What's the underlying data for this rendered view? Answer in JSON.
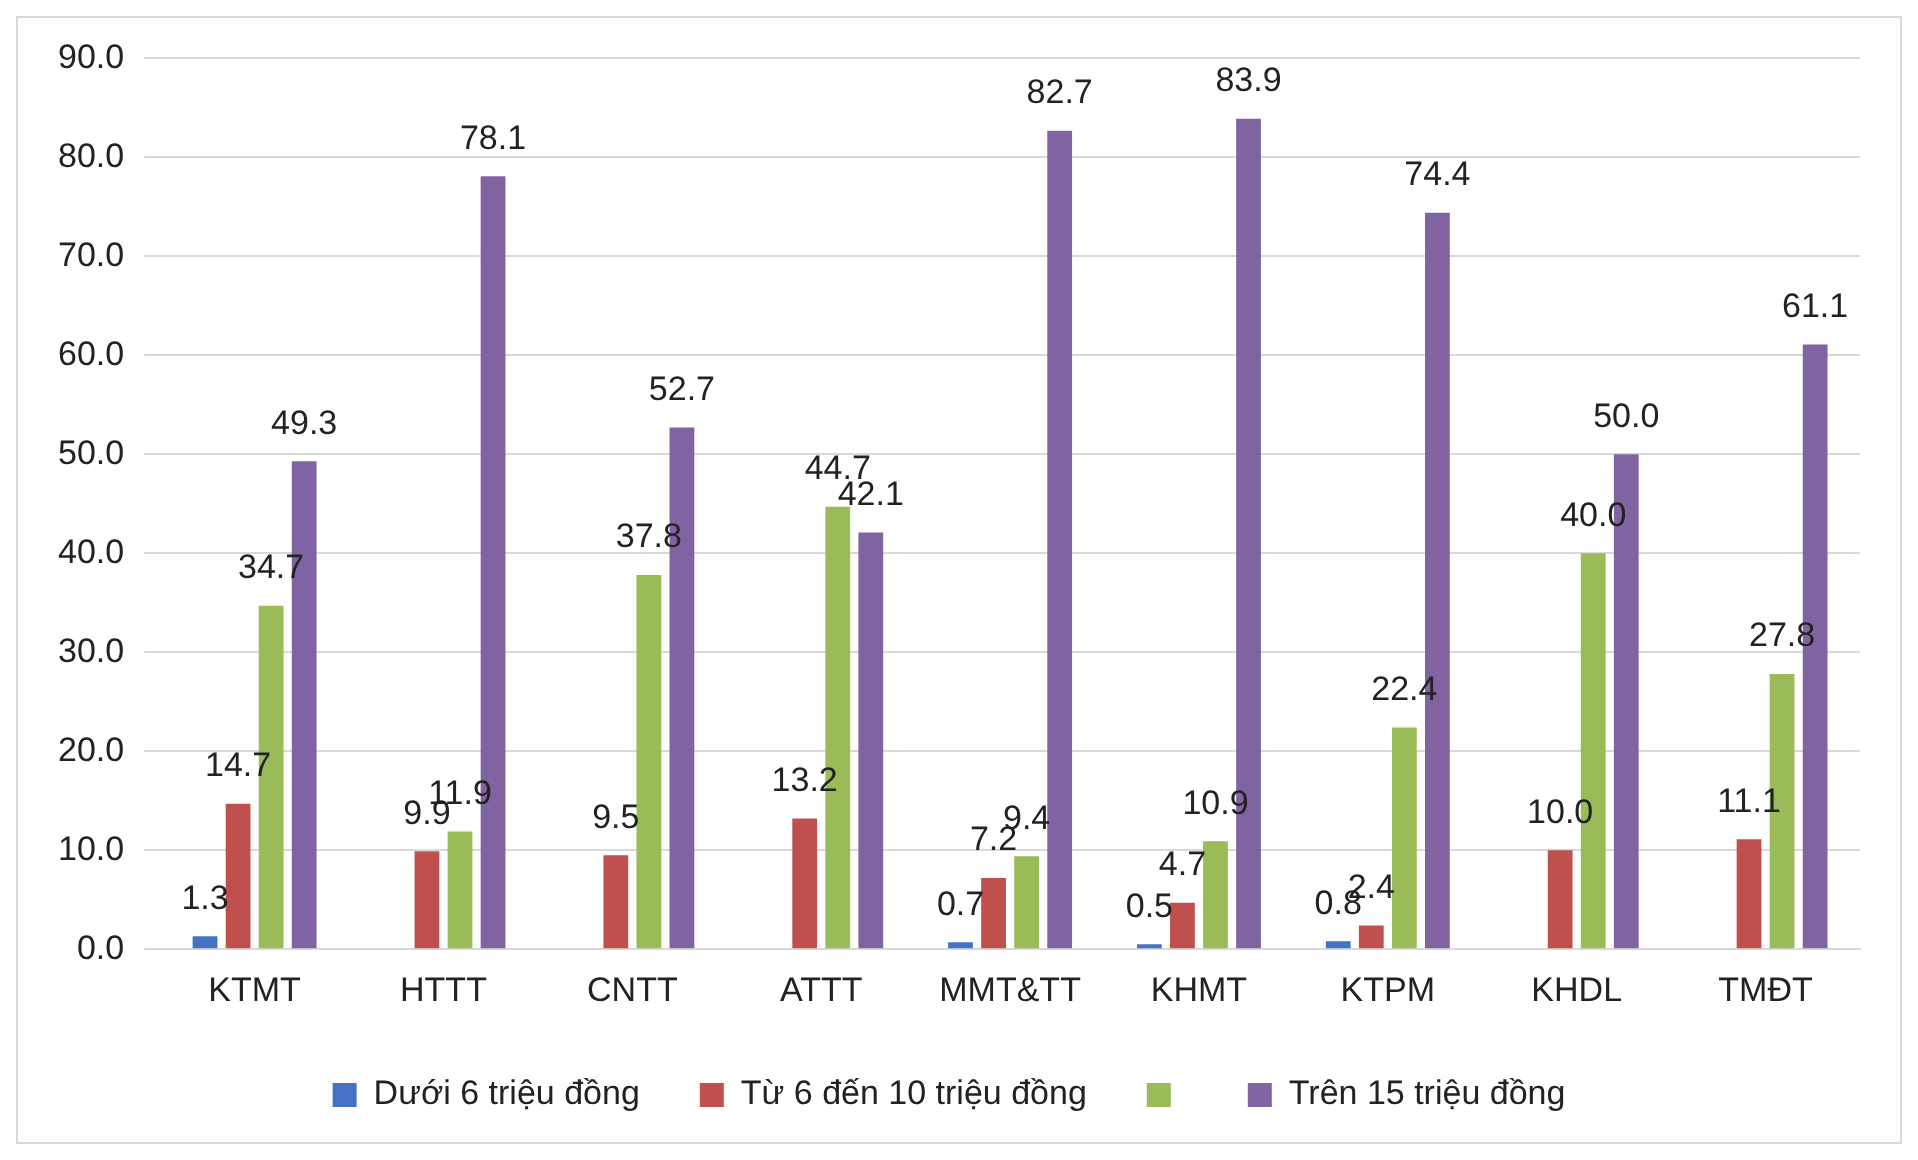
{
  "chart_data": {
    "type": "bar",
    "categories": [
      "KTMT",
      "HTTT",
      "CNTT",
      "ATTT",
      "MMT&TT",
      "KHMT",
      "KTPM",
      "KHDL",
      "TMĐT"
    ],
    "series": [
      {
        "name": "Dưới 6 triệu đồng",
        "color": "#4472c4",
        "values": [
          1.3,
          null,
          null,
          null,
          0.7,
          0.5,
          0.8,
          null,
          null
        ],
        "value_labels": [
          "1.3",
          null,
          null,
          null,
          "0.7",
          "0.5",
          "0.8",
          null,
          null
        ]
      },
      {
        "name": "Từ 6 đến 10 triệu đồng",
        "color": "#c0504d",
        "values": [
          14.7,
          9.9,
          9.5,
          13.2,
          7.2,
          4.7,
          2.4,
          10.0,
          11.1
        ],
        "value_labels": [
          "14.7",
          "9.9",
          "9.5",
          "13.2",
          "7.2",
          "4.7",
          "2.4",
          "10.0",
          "11.1"
        ]
      },
      {
        "color": "#9bbb59",
        "values": [
          34.7,
          11.9,
          37.8,
          44.7,
          9.4,
          10.9,
          22.4,
          40.0,
          27.8
        ],
        "value_labels": [
          "34.7",
          "11.9",
          "37.8",
          "44.7",
          "9.4",
          "10.9",
          "22.4",
          "40.0",
          "27.8"
        ]
      },
      {
        "name": "Trên 15 triệu đồng",
        "color": "#8064a2",
        "values": [
          49.3,
          78.1,
          52.7,
          42.1,
          82.7,
          83.9,
          74.4,
          50.0,
          61.1
        ],
        "value_labels": [
          "49.3",
          "78.1",
          "52.7",
          "42.1",
          "82.7",
          "83.9",
          "74.4",
          "50.0",
          "61.1"
        ]
      }
    ],
    "ylim": [
      0,
      90
    ],
    "yticks": [
      {
        "value": 0,
        "label": "0.0"
      },
      {
        "value": 10,
        "label": "10.0"
      },
      {
        "value": 20,
        "label": "20.0"
      },
      {
        "value": 30,
        "label": "30.0"
      },
      {
        "value": 40,
        "label": "40.0"
      },
      {
        "value": 50,
        "label": "50.0"
      },
      {
        "value": 60,
        "label": "60.0"
      },
      {
        "value": 70,
        "label": "70.0"
      },
      {
        "value": 80,
        "label": "80.0"
      },
      {
        "value": 90,
        "label": "90.0"
      }
    ],
    "grid": "y",
    "legend": "bottom"
  }
}
